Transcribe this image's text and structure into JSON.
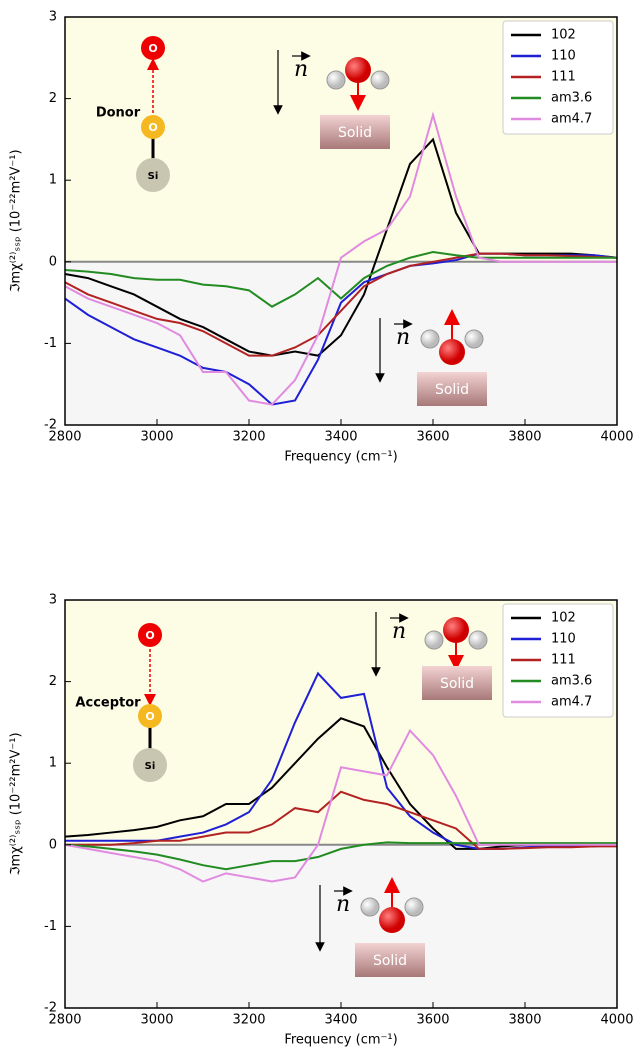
{
  "chart_data": [
    {
      "type": "line",
      "xlabel": "Frequency (cm⁻¹)",
      "ylabel": "ℑmχ⁽²⁾ₛₛₚ (10⁻²²m²V⁻¹)",
      "xlim": [
        2800,
        4000
      ],
      "xticks": [
        2800,
        3000,
        3200,
        3400,
        3600,
        3800,
        4000
      ],
      "ylim": [
        -2,
        3
      ],
      "yticks": [
        -2,
        -1,
        0,
        1,
        2,
        3
      ],
      "legend": "upper right",
      "x": [
        2800,
        2850,
        2900,
        2950,
        3000,
        3050,
        3100,
        3150,
        3200,
        3250,
        3300,
        3350,
        3400,
        3450,
        3500,
        3550,
        3600,
        3650,
        3700,
        3750,
        3800,
        3850,
        3900,
        3950,
        4000
      ],
      "series": [
        {
          "name": "102",
          "color": "#000000",
          "values": [
            -0.15,
            -0.2,
            -0.3,
            -0.4,
            -0.55,
            -0.7,
            -0.8,
            -0.95,
            -1.1,
            -1.15,
            -1.1,
            -1.15,
            -0.9,
            -0.4,
            0.4,
            1.2,
            1.5,
            0.6,
            0.1,
            0.1,
            0.1,
            0.1,
            0.1,
            0.08,
            0.05
          ]
        },
        {
          "name": "110",
          "color": "#1f1fd6",
          "values": [
            -0.45,
            -0.65,
            -0.8,
            -0.95,
            -1.05,
            -1.15,
            -1.3,
            -1.35,
            -1.5,
            -1.75,
            -1.7,
            -1.2,
            -0.5,
            -0.25,
            -0.15,
            -0.05,
            -0.02,
            0.02,
            0.1,
            0.1,
            0.08,
            0.08,
            0.08,
            0.08,
            0.05
          ]
        },
        {
          "name": "111",
          "color": "#b22222",
          "values": [
            -0.25,
            -0.4,
            -0.5,
            -0.6,
            -0.7,
            -0.75,
            -0.85,
            -1.0,
            -1.15,
            -1.15,
            -1.05,
            -0.9,
            -0.6,
            -0.3,
            -0.15,
            -0.05,
            0,
            0.05,
            0.1,
            0.1,
            0.08,
            0.08,
            0.07,
            0.06,
            0.05
          ]
        },
        {
          "name": "am3.6",
          "color": "#228b22",
          "values": [
            -0.1,
            -0.12,
            -0.15,
            -0.2,
            -0.22,
            -0.22,
            -0.28,
            -0.3,
            -0.35,
            -0.55,
            -0.4,
            -0.2,
            -0.45,
            -0.2,
            -0.05,
            0.05,
            0.12,
            0.08,
            0.05,
            0.05,
            0.05,
            0.05,
            0.05,
            0.05,
            0.05
          ]
        },
        {
          "name": "am4.7",
          "color": "#e08be0",
          "values": [
            -0.3,
            -0.45,
            -0.55,
            -0.65,
            -0.75,
            -0.9,
            -1.35,
            -1.35,
            -1.7,
            -1.75,
            -1.45,
            -0.9,
            0.05,
            0.25,
            0.4,
            0.8,
            1.8,
            0.8,
            0.05,
            0,
            0,
            0,
            0,
            0,
            0
          ]
        }
      ],
      "annotations": {
        "label": "Donor",
        "top_atom": "O",
        "mid_atom": "O",
        "base_atom": "Si",
        "normal": "n",
        "surface": "Solid"
      }
    },
    {
      "type": "line",
      "xlabel": "Frequency (cm⁻¹)",
      "ylabel": "ℑmχ⁽²⁾ₛₛₚ (10⁻²²m²V⁻¹)",
      "xlim": [
        2800,
        4000
      ],
      "xticks": [
        2800,
        3000,
        3200,
        3400,
        3600,
        3800,
        4000
      ],
      "ylim": [
        -2,
        3
      ],
      "yticks": [
        -2,
        -1,
        0,
        1,
        2,
        3
      ],
      "legend": "upper right",
      "x": [
        2800,
        2850,
        2900,
        2950,
        3000,
        3050,
        3100,
        3150,
        3200,
        3250,
        3300,
        3350,
        3400,
        3450,
        3500,
        3550,
        3600,
        3650,
        3700,
        3750,
        3800,
        3850,
        3900,
        3950,
        4000
      ],
      "series": [
        {
          "name": "102",
          "color": "#000000",
          "values": [
            0.1,
            0.12,
            0.15,
            0.18,
            0.22,
            0.3,
            0.35,
            0.5,
            0.5,
            0.7,
            1.0,
            1.3,
            1.55,
            1.45,
            0.95,
            0.5,
            0.2,
            -0.05,
            -0.05,
            -0.02,
            0,
            0,
            0,
            0,
            0
          ]
        },
        {
          "name": "110",
          "color": "#1f1fd6",
          "values": [
            0.05,
            0.05,
            0.05,
            0.05,
            0.05,
            0.1,
            0.15,
            0.25,
            0.4,
            0.8,
            1.5,
            2.1,
            1.8,
            1.85,
            0.7,
            0.35,
            0.15,
            0,
            -0.05,
            -0.05,
            -0.03,
            -0.02,
            -0.02,
            -0.02,
            0
          ]
        },
        {
          "name": "111",
          "color": "#b22222",
          "values": [
            0,
            0,
            0,
            0.02,
            0.05,
            0.05,
            0.1,
            0.15,
            0.15,
            0.25,
            0.45,
            0.4,
            0.65,
            0.55,
            0.5,
            0.4,
            0.3,
            0.2,
            -0.05,
            -0.05,
            -0.04,
            -0.03,
            -0.03,
            -0.02,
            -0.02
          ]
        },
        {
          "name": "am3.6",
          "color": "#228b22",
          "values": [
            0,
            -0.02,
            -0.05,
            -0.08,
            -0.12,
            -0.18,
            -0.25,
            -0.3,
            -0.25,
            -0.2,
            -0.2,
            -0.15,
            -0.05,
            0,
            0.03,
            0.02,
            0.02,
            0.02,
            0.02,
            0.02,
            0.02,
            0.02,
            0.02,
            0.02,
            0.02
          ]
        },
        {
          "name": "am4.7",
          "color": "#e08be0",
          "values": [
            0,
            -0.05,
            -0.1,
            -0.15,
            -0.2,
            -0.3,
            -0.45,
            -0.35,
            -0.4,
            -0.45,
            -0.4,
            0,
            0.95,
            0.9,
            0.85,
            1.4,
            1.1,
            0.6,
            0,
            0,
            0,
            0,
            0,
            0,
            0
          ]
        }
      ],
      "annotations": {
        "label": "Acceptor",
        "top_atom": "O",
        "mid_atom": "O",
        "base_atom": "Si",
        "normal": "n",
        "surface": "Solid"
      }
    }
  ]
}
